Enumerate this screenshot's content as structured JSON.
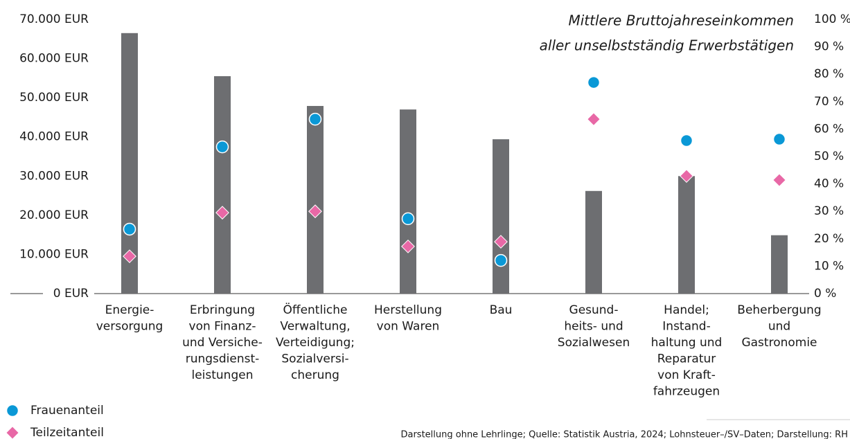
{
  "chart_data": {
    "type": "bar",
    "title": [
      "Mittlere Bruttojahreseinkommen",
      "aller unselbstständig Erwerbstätigen"
    ],
    "categories": [
      [
        "Energie-",
        "versorgung"
      ],
      [
        "Erbringung",
        "von Finanz-",
        "und Versiche-",
        "rungsdienst-",
        "leistungen"
      ],
      [
        "Öffentliche",
        "Verwaltung,",
        "Verteidigung;",
        "Sozialversi-",
        "cherung"
      ],
      [
        "Herstellung",
        "von Waren"
      ],
      [
        "Bau"
      ],
      [
        "Gesund-",
        "heits- und",
        "Sozialwesen"
      ],
      [
        "Handel;",
        "Instand-",
        "haltung und",
        "Reparatur",
        "von Kraft-",
        "fahrzeugen"
      ],
      [
        "Beherbergung",
        "und",
        "Gastronomie"
      ]
    ],
    "values": [
      66500,
      55500,
      47900,
      47000,
      39400,
      26200,
      30000,
      14900
    ],
    "color": "#6d6e71",
    "series": [
      {
        "name": "Frauenanteil",
        "color": "#0a98d6",
        "marker": "circle",
        "axis": "y2",
        "values": [
          23.5,
          53.5,
          63.6,
          27.3,
          12.1,
          77,
          55.8,
          56.3
        ]
      },
      {
        "name": "Teilzeitanteil",
        "color": "#e868a6",
        "marker": "diamond",
        "axis": "y2",
        "values": [
          13.6,
          29.5,
          30,
          17.2,
          18.9,
          63.6,
          42.9,
          41.4
        ]
      }
    ],
    "ylim": [
      0,
      70000
    ],
    "yticks": [
      {
        "value": 0,
        "label": "0 EUR"
      },
      {
        "value": 10000,
        "label": "10.000 EUR"
      },
      {
        "value": 20000,
        "label": "20.000 EUR"
      },
      {
        "value": 30000,
        "label": "30.000 EUR"
      },
      {
        "value": 40000,
        "label": "40.000 EUR"
      },
      {
        "value": 50000,
        "label": "50.000 EUR"
      },
      {
        "value": 60000,
        "label": "60.000 EUR"
      },
      {
        "value": 70000,
        "label": "70.000 EUR"
      }
    ],
    "y2lim": [
      0,
      100
    ],
    "y2ticks": [
      {
        "value": 0,
        "label": "0 %"
      },
      {
        "value": 10,
        "label": "10 %"
      },
      {
        "value": 20,
        "label": "20 %"
      },
      {
        "value": 30,
        "label": "30 %"
      },
      {
        "value": 40,
        "label": "40 %"
      },
      {
        "value": 50,
        "label": "50 %"
      },
      {
        "value": 60,
        "label": "60 %"
      },
      {
        "value": 70,
        "label": "70 %"
      },
      {
        "value": 80,
        "label": "80 %"
      },
      {
        "value": 90,
        "label": "90 %"
      },
      {
        "value": 100,
        "label": "100 %"
      }
    ],
    "source": "Darstellung ohne Lehrlinge; Quelle: Statistik Austria, 2024; Lohnsteuer–/SV–Daten; Darstellung: RH"
  }
}
